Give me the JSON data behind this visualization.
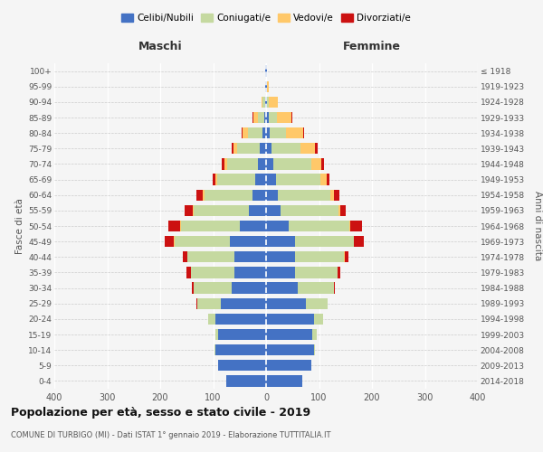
{
  "age_groups": [
    "0-4",
    "5-9",
    "10-14",
    "15-19",
    "20-24",
    "25-29",
    "30-34",
    "35-39",
    "40-44",
    "45-49",
    "50-54",
    "55-59",
    "60-64",
    "65-69",
    "70-74",
    "75-79",
    "80-84",
    "85-89",
    "90-94",
    "95-99",
    "100+"
  ],
  "birth_years": [
    "2014-2018",
    "2009-2013",
    "2004-2008",
    "1999-2003",
    "1994-1998",
    "1989-1993",
    "1984-1988",
    "1979-1983",
    "1974-1978",
    "1969-1973",
    "1964-1968",
    "1959-1963",
    "1954-1958",
    "1949-1953",
    "1944-1948",
    "1939-1943",
    "1934-1938",
    "1929-1933",
    "1924-1928",
    "1919-1923",
    "≤ 1918"
  ],
  "colors": {
    "celibi": "#4472c4",
    "coniugati": "#c5d9a0",
    "vedovi": "#ffc869",
    "divorziati": "#cc1111"
  },
  "maschi": {
    "celibi": [
      75,
      90,
      95,
      90,
      95,
      85,
      65,
      60,
      60,
      68,
      50,
      32,
      25,
      20,
      16,
      12,
      6,
      4,
      2,
      1,
      1
    ],
    "coniugati": [
      0,
      1,
      2,
      5,
      15,
      45,
      72,
      82,
      88,
      105,
      110,
      105,
      92,
      72,
      58,
      42,
      28,
      12,
      5,
      1,
      0
    ],
    "vedovi": [
      0,
      0,
      0,
      0,
      0,
      0,
      0,
      0,
      1,
      1,
      2,
      2,
      3,
      4,
      5,
      8,
      10,
      8,
      2,
      0,
      0
    ],
    "divorziati": [
      0,
      0,
      0,
      0,
      0,
      1,
      3,
      8,
      8,
      18,
      22,
      14,
      12,
      5,
      5,
      3,
      2,
      1,
      0,
      0,
      0
    ]
  },
  "femmine": {
    "celibi": [
      68,
      85,
      90,
      88,
      90,
      75,
      60,
      55,
      55,
      55,
      42,
      28,
      23,
      18,
      13,
      10,
      6,
      5,
      2,
      1,
      1
    ],
    "coniugati": [
      0,
      1,
      3,
      8,
      18,
      42,
      68,
      80,
      92,
      110,
      115,
      108,
      98,
      85,
      72,
      55,
      32,
      15,
      3,
      0,
      0
    ],
    "vedovi": [
      0,
      0,
      0,
      0,
      0,
      0,
      0,
      0,
      1,
      1,
      2,
      5,
      8,
      12,
      20,
      28,
      32,
      28,
      18,
      4,
      1
    ],
    "divorziati": [
      0,
      0,
      0,
      0,
      0,
      0,
      2,
      5,
      8,
      18,
      22,
      10,
      10,
      5,
      5,
      5,
      2,
      1,
      0,
      0,
      0
    ]
  },
  "title": "Popolazione per età, sesso e stato civile - 2019",
  "subtitle": "COMUNE DI TURBIGO (MI) - Dati ISTAT 1° gennaio 2019 - Elaborazione TUTTITALIA.IT",
  "xlabel_left": "Maschi",
  "xlabel_right": "Femmine",
  "ylabel_left": "Fasce di età",
  "ylabel_right": "Anni di nascita",
  "xlim": 400,
  "legend_labels": [
    "Celibi/Nubili",
    "Coniugati/e",
    "Vedovi/e",
    "Divorziati/e"
  ],
  "bg_color": "#f5f5f5"
}
